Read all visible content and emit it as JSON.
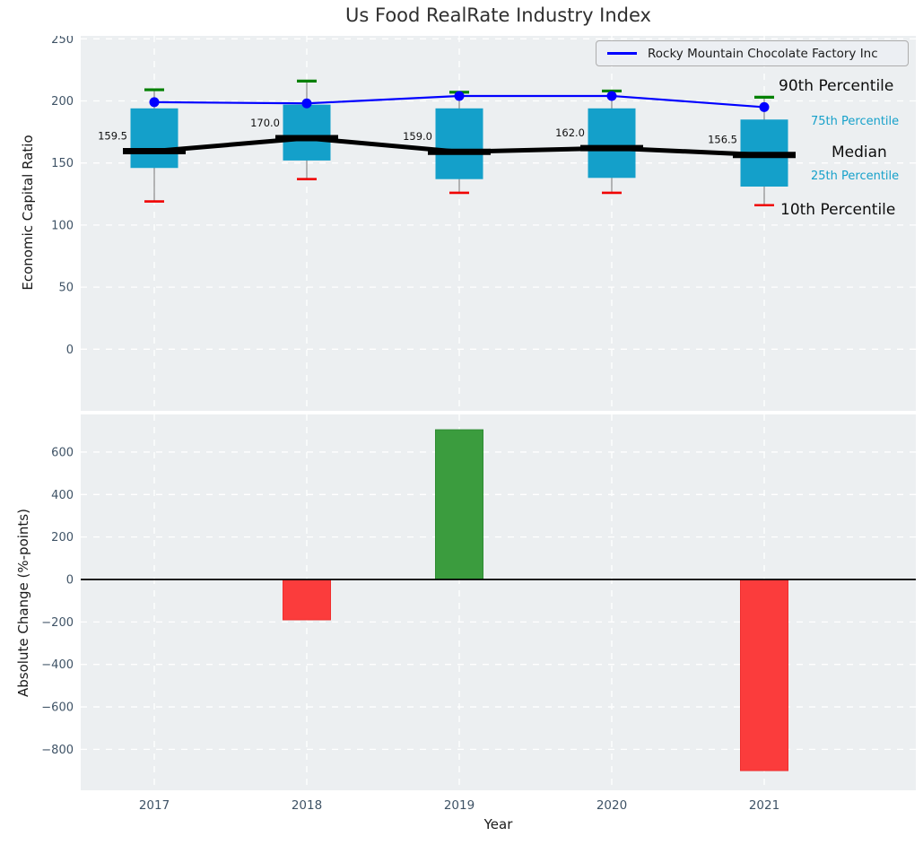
{
  "title": "Us Food RealRate Industry Index",
  "legend": {
    "label": "Rocky Mountain Chocolate Factory Inc"
  },
  "annotations": {
    "p90": "90th Percentile",
    "p75": "75th Percentile",
    "median": "Median",
    "p25": "25th Percentile",
    "p10": "10th Percentile"
  },
  "colors": {
    "figure_bg": "#ffffff",
    "panel_bg": "#eceff1",
    "grid": "#ffffff",
    "tick_label": "#3f5366",
    "title_text": "#2f2f2f",
    "box_fill": "#14a0ca",
    "whisker": "#8a8a8a",
    "cap_top": "#008000",
    "cap_bottom": "#f00000",
    "median_line": "#000000",
    "company_line": "#0000ff",
    "bar_up": "#3b9c3e",
    "bar_up_edge": "#2f8c33",
    "bar_down": "#fb3c3c",
    "bar_down_edge": "#ef2e2e",
    "zero_line": "#000000",
    "annotation_small": "#17a1ca",
    "median_value_label": "#111111"
  },
  "chart_data": [
    {
      "type": "boxplot",
      "title": "Us Food RealRate Industry Index",
      "ylabel": "Economic Capital Ratio",
      "categories": [
        "2017",
        "2018",
        "2019",
        "2020",
        "2021"
      ],
      "yticks": [
        "250",
        "200",
        "150",
        "100",
        "50",
        "0"
      ],
      "ytick_values": [
        250,
        200,
        150,
        100,
        50,
        0
      ],
      "ylim": [
        -50,
        252
      ],
      "grid": true,
      "legend_position": "upper right",
      "boxes": [
        {
          "year": "2017",
          "p90": 209,
          "p75": 194,
          "median": 159.5,
          "p25": 146,
          "p10": 119,
          "median_label": "159.5"
        },
        {
          "year": "2018",
          "p90": 216,
          "p75": 197,
          "median": 170.0,
          "p25": 152,
          "p10": 137,
          "median_label": "170.0"
        },
        {
          "year": "2019",
          "p90": 207,
          "p75": 194,
          "median": 159.0,
          "p25": 137,
          "p10": 126,
          "median_label": "159.0"
        },
        {
          "year": "2020",
          "p90": 208,
          "p75": 194,
          "median": 162.0,
          "p25": 138,
          "p10": 126,
          "median_label": "162.0"
        },
        {
          "year": "2021",
          "p90": 203,
          "p75": 185,
          "median": 156.5,
          "p25": 131,
          "p10": 116,
          "median_label": "156.5"
        }
      ],
      "series": [
        {
          "name": "Rocky Mountain Chocolate Factory Inc",
          "type": "line",
          "marker": "circle",
          "values": [
            199,
            198,
            204,
            204,
            195
          ]
        },
        {
          "name": "Median",
          "type": "line",
          "marker": "none",
          "values": [
            159.5,
            170.0,
            159.0,
            162.0,
            156.5
          ]
        }
      ]
    },
    {
      "type": "bar",
      "ylabel": "Absolute Change (%-points)",
      "xlabel": "Year",
      "categories": [
        "2017",
        "2018",
        "2019",
        "2020",
        "2021"
      ],
      "values": [
        0,
        -190,
        705,
        0,
        -900
      ],
      "bar_directions": [
        "none",
        "down",
        "up",
        "none",
        "down"
      ],
      "yticks": [
        "600",
        "400",
        "200",
        "0",
        "−200",
        "−400",
        "−600",
        "−800"
      ],
      "ytick_values": [
        600,
        400,
        200,
        0,
        -200,
        -400,
        -600,
        -800
      ],
      "ylim": [
        -990,
        780
      ],
      "grid": true
    }
  ]
}
